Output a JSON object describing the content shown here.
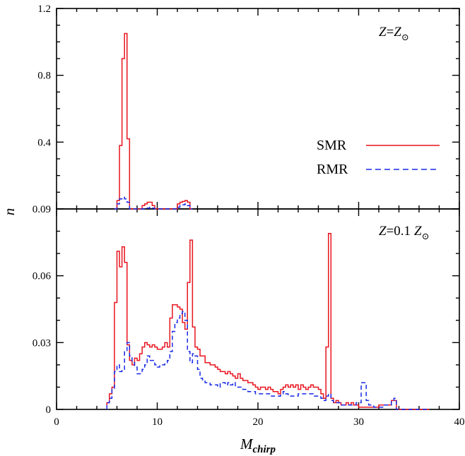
{
  "chart_data": [
    {
      "panel": "top",
      "type": "line",
      "step": true,
      "ylabel": "",
      "xlim": [
        0,
        40
      ],
      "ylim": [
        0,
        1.2
      ],
      "yticks": [
        0.4,
        0.8,
        1.2
      ],
      "ytick_labels": [
        "0.4",
        "0.8",
        "1.2"
      ],
      "annotation": {
        "Z": "Z",
        "eq": "=",
        "Zsun": "Z",
        "sun": "⊙"
      },
      "series": [
        {
          "name": "SMR",
          "color": "#e8141e",
          "dash": "solid",
          "x": [
            5.75,
            6.0,
            6.25,
            6.5,
            6.75,
            7.0,
            7.25,
            7.5,
            7.75,
            8.0,
            8.25,
            8.5,
            8.75,
            9.0,
            9.25,
            9.5,
            9.75,
            10.0,
            10.25,
            11.75,
            12.0,
            12.25,
            12.5,
            12.75,
            13.0,
            13.25
          ],
          "y": [
            0.0,
            0.05,
            0.38,
            0.9,
            1.05,
            0.42,
            0.0,
            0.0,
            0.0,
            0.0,
            0.0,
            0.02,
            0.03,
            0.04,
            0.04,
            0.02,
            0.0,
            0.0,
            0.0,
            0.0,
            0.03,
            0.04,
            0.045,
            0.05,
            0.04,
            0.0
          ]
        },
        {
          "name": "RMR",
          "color": "#1728e6",
          "dash": "dashed",
          "x": [
            5.75,
            6.0,
            6.25,
            6.5,
            6.75,
            7.0,
            7.25,
            7.5,
            7.75,
            8.0,
            8.25,
            8.5,
            8.75,
            9.0,
            9.25,
            9.5,
            9.75,
            10.0,
            10.25,
            11.75,
            12.0,
            12.25,
            12.5,
            12.75,
            13.0,
            13.25
          ],
          "y": [
            0.0,
            0.03,
            0.06,
            0.07,
            0.06,
            0.04,
            0.0,
            0.0,
            0.0,
            0.0,
            0.0,
            0.0,
            0.0,
            0.005,
            0.01,
            0.005,
            0.0,
            0.0,
            0.0,
            0.0,
            0.01,
            0.02,
            0.025,
            0.03,
            0.02,
            0.0
          ]
        }
      ]
    },
    {
      "panel": "bottom",
      "type": "line",
      "step": true,
      "xlabel": "chirp",
      "xlabel_main": "M",
      "xlim": [
        0,
        40
      ],
      "ylim": [
        0,
        0.09
      ],
      "xticks": [
        0,
        10,
        20,
        30,
        40
      ],
      "xtick_labels": [
        "0",
        "10",
        "20",
        "30",
        "40"
      ],
      "yticks": [
        0,
        0.03,
        0.06,
        0.09
      ],
      "ytick_labels": [
        "0",
        "0.03",
        "0.06",
        "0.09"
      ],
      "annotation": {
        "Z": "Z",
        "eq": "=0.1",
        "Zsun": "Z",
        "sun": "⊙"
      },
      "series": [
        {
          "name": "SMR",
          "color": "#e8141e",
          "dash": "solid",
          "x": [
            5.0,
            5.25,
            5.5,
            5.75,
            6.0,
            6.25,
            6.5,
            6.75,
            7.0,
            7.25,
            7.5,
            7.75,
            8.0,
            8.25,
            8.5,
            8.75,
            9.0,
            9.25,
            9.5,
            9.75,
            10.0,
            10.25,
            10.5,
            10.75,
            11.0,
            11.25,
            11.5,
            11.75,
            12.0,
            12.25,
            12.5,
            12.75,
            13.0,
            13.25,
            13.5,
            13.75,
            14.0,
            14.25,
            14.5,
            14.75,
            15.0,
            15.25,
            15.5,
            15.75,
            16.0,
            16.25,
            16.5,
            16.75,
            17.0,
            17.25,
            17.5,
            17.75,
            18.0,
            18.25,
            18.5,
            18.75,
            19.0,
            19.25,
            19.5,
            19.75,
            20.0,
            20.25,
            20.5,
            20.75,
            21.0,
            21.25,
            21.5,
            21.75,
            22.0,
            22.25,
            22.5,
            22.75,
            23.0,
            23.25,
            23.5,
            23.75,
            24.0,
            24.25,
            24.5,
            24.75,
            25.0,
            25.25,
            25.5,
            25.75,
            26.0,
            26.25,
            26.5,
            26.75,
            27.0,
            27.25,
            27.5,
            27.75,
            28.0,
            28.25,
            28.5,
            28.75,
            29.0,
            29.25,
            29.5,
            29.75,
            30.0,
            30.25,
            30.5,
            30.75,
            31.0,
            31.25,
            31.5,
            31.75,
            32.0,
            32.25,
            32.5,
            32.75,
            33.0,
            33.25,
            33.5,
            33.75,
            34.0,
            34.25,
            34.5,
            34.75,
            35.0,
            35.25,
            35.5,
            35.75,
            36.0,
            36.25,
            36.5,
            36.75
          ],
          "y": [
            0.003,
            0.007,
            0.01,
            0.048,
            0.071,
            0.064,
            0.073,
            0.066,
            0.029,
            0.022,
            0.02,
            0.023,
            0.022,
            0.025,
            0.028,
            0.03,
            0.029,
            0.028,
            0.029,
            0.028,
            0.027,
            0.027,
            0.028,
            0.03,
            0.028,
            0.041,
            0.047,
            0.047,
            0.046,
            0.045,
            0.039,
            0.036,
            0.057,
            0.076,
            0.037,
            0.028,
            0.027,
            0.024,
            0.024,
            0.021,
            0.021,
            0.02,
            0.02,
            0.019,
            0.018,
            0.017,
            0.017,
            0.016,
            0.017,
            0.016,
            0.015,
            0.014,
            0.016,
            0.014,
            0.013,
            0.013,
            0.012,
            0.012,
            0.011,
            0.01,
            0.009,
            0.01,
            0.01,
            0.009,
            0.01,
            0.009,
            0.008,
            0.008,
            0.007,
            0.009,
            0.01,
            0.011,
            0.01,
            0.011,
            0.01,
            0.011,
            0.009,
            0.011,
            0.01,
            0.009,
            0.01,
            0.011,
            0.01,
            0.01,
            0.009,
            0.007,
            0.005,
            0.028,
            0.079,
            0.005,
            0.003,
            0.004,
            0.003,
            0.002,
            0.002,
            0.003,
            0.002,
            0.003,
            0.002,
            0.002,
            0.001,
            0.001,
            0.001,
            0.001,
            0.001,
            0.001,
            0.001,
            0.001,
            0.002,
            0.002,
            0.002,
            0.002,
            0.002,
            0.004,
            0.004,
            0.0,
            0.0,
            0.0,
            0.0,
            0.0,
            0.0,
            0.0,
            0.0,
            0.0,
            0.0,
            0.0,
            0.0,
            0.0
          ],
          "x_end": 36.75
        },
        {
          "name": "RMR",
          "color": "#1728e6",
          "dash": "dashed",
          "x": [
            5.0,
            5.25,
            5.5,
            5.75,
            6.0,
            6.25,
            6.5,
            6.75,
            7.0,
            7.25,
            7.5,
            7.75,
            8.0,
            8.25,
            8.5,
            8.75,
            9.0,
            9.25,
            9.5,
            9.75,
            10.0,
            10.25,
            10.5,
            10.75,
            11.0,
            11.25,
            11.5,
            11.75,
            12.0,
            12.25,
            12.5,
            12.75,
            13.0,
            13.25,
            13.5,
            13.75,
            14.0,
            14.25,
            14.5,
            14.75,
            15.0,
            15.25,
            15.5,
            15.75,
            16.0,
            16.25,
            16.5,
            16.75,
            17.0,
            17.25,
            17.5,
            17.75,
            18.0,
            18.25,
            18.5,
            18.75,
            19.0,
            19.25,
            19.5,
            19.75,
            20.0,
            20.25,
            20.5,
            20.75,
            21.0,
            21.25,
            21.5,
            21.75,
            22.0,
            22.25,
            22.5,
            22.75,
            23.0,
            23.25,
            23.5,
            23.75,
            24.0,
            24.25,
            24.5,
            24.75,
            25.0,
            25.25,
            25.5,
            25.75,
            26.0,
            26.25,
            26.5,
            26.75,
            27.0,
            27.25,
            27.5,
            27.75,
            28.0,
            28.25,
            28.5,
            28.75,
            29.0,
            29.25,
            29.5,
            29.75,
            30.0,
            30.25,
            30.5,
            30.75,
            31.0,
            31.25,
            31.5,
            31.75,
            32.0,
            32.25,
            32.5,
            32.75,
            33.0,
            33.25,
            33.5,
            33.75,
            34.0,
            34.25,
            34.5,
            34.75,
            35.0,
            35.25,
            35.5,
            35.75,
            36.0,
            36.25,
            36.5,
            36.75
          ],
          "y": [
            0.003,
            0.005,
            0.009,
            0.017,
            0.02,
            0.017,
            0.018,
            0.026,
            0.03,
            0.024,
            0.021,
            0.019,
            0.016,
            0.016,
            0.018,
            0.02,
            0.024,
            0.022,
            0.022,
            0.02,
            0.019,
            0.02,
            0.02,
            0.021,
            0.022,
            0.026,
            0.035,
            0.039,
            0.041,
            0.043,
            0.044,
            0.04,
            0.026,
            0.021,
            0.025,
            0.024,
            0.018,
            0.014,
            0.013,
            0.012,
            0.012,
            0.011,
            0.011,
            0.011,
            0.01,
            0.012,
            0.012,
            0.011,
            0.012,
            0.011,
            0.012,
            0.01,
            0.01,
            0.01,
            0.009,
            0.009,
            0.008,
            0.008,
            0.008,
            0.007,
            0.007,
            0.007,
            0.007,
            0.007,
            0.007,
            0.006,
            0.006,
            0.006,
            0.006,
            0.007,
            0.008,
            0.007,
            0.006,
            0.006,
            0.006,
            0.006,
            0.007,
            0.007,
            0.007,
            0.007,
            0.007,
            0.007,
            0.006,
            0.006,
            0.006,
            0.005,
            0.004,
            0.006,
            0.007,
            0.004,
            0.003,
            0.003,
            0.003,
            0.002,
            0.002,
            0.002,
            0.002,
            0.002,
            0.002,
            0.003,
            0.003,
            0.012,
            0.012,
            0.004,
            0.002,
            0.002,
            0.001,
            0.001,
            0.001,
            0.001,
            0.002,
            0.002,
            0.002,
            0.004,
            0.005,
            0.0,
            0.0,
            0.0,
            0.0,
            0.0,
            0.0,
            0.0,
            0.0,
            0.0,
            0.0,
            0.0,
            0.0,
            0.0
          ],
          "x_end": 36.75
        }
      ]
    }
  ],
  "labels": {
    "ylabel": "n",
    "legend_smr": "SMR",
    "legend_rmr": "RMR"
  },
  "colors": {
    "smr": "#e8141e",
    "rmr": "#1728e6"
  }
}
